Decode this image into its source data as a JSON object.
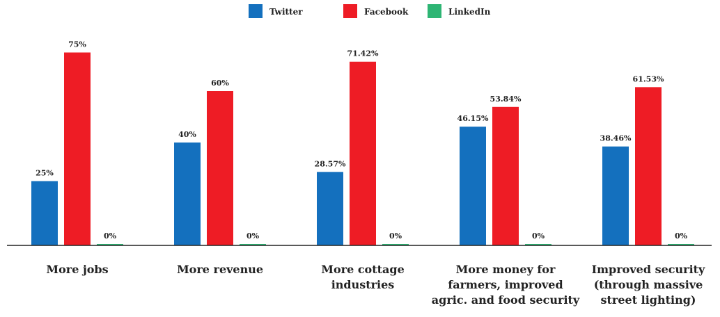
{
  "chart_data": {
    "type": "bar",
    "categories": [
      [
        "More jobs"
      ],
      [
        "More revenue"
      ],
      [
        "More cottage",
        "industries"
      ],
      [
        "More money for",
        "farmers, improved",
        "agric. and food security"
      ],
      [
        "Improved security",
        "(through massive",
        "street lighting)"
      ]
    ],
    "series": [
      {
        "name": "Twitter",
        "color": "#1470BE",
        "values": [
          25,
          40,
          28.57,
          46.15,
          38.46
        ],
        "labels": [
          "25%",
          "40%",
          "28.57%",
          "46.15%",
          "38.46%"
        ]
      },
      {
        "name": "Facebook",
        "color": "#EE1C25",
        "values": [
          75,
          60,
          71.42,
          53.84,
          61.53
        ],
        "labels": [
          "75%",
          "60%",
          "71.42%",
          "53.84%",
          "61.53%"
        ]
      },
      {
        "name": "LinkedIn",
        "color": "#2EB574",
        "values": [
          0,
          0,
          0,
          0,
          0
        ],
        "labels": [
          "0%",
          "0%",
          "0%",
          "0%",
          "0%"
        ]
      }
    ],
    "ylim": [
      0,
      100
    ],
    "grid": false,
    "legend_position": "top-center",
    "title": "",
    "xlabel": "",
    "ylabel": ""
  }
}
